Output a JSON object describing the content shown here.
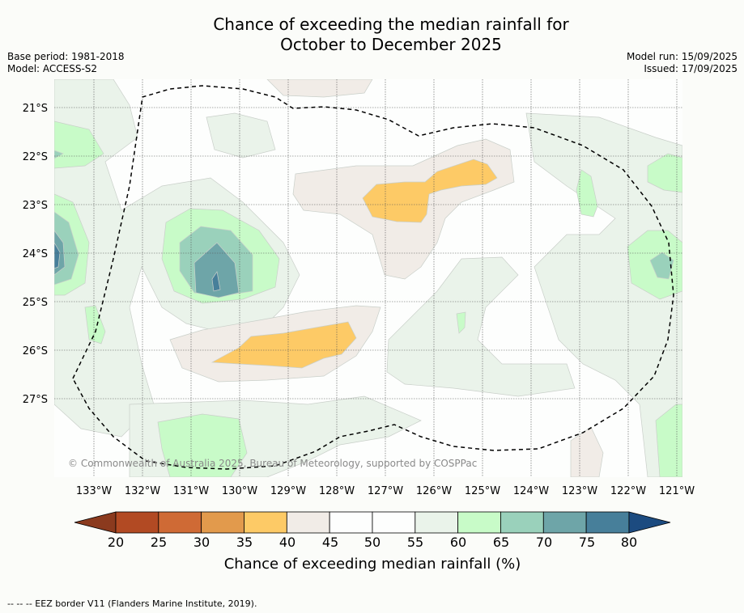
{
  "title": {
    "line1": "Chance of exceeding the median rainfall for",
    "line2": "October to December 2025"
  },
  "meta": {
    "base_period": "Base period: 1981-2018",
    "model": "Model: ACCESS-S2",
    "model_run": "Model run: 15/09/2025",
    "issued": "Issued: 17/09/2025"
  },
  "copyright": "© Commonwealth of Australia 2025, Bureau of Meteorology, supported by COSPPac",
  "latitudes": [
    "21°S",
    "22°S",
    "23°S",
    "24°S",
    "25°S",
    "26°S",
    "27°S"
  ],
  "longitudes": [
    "133°W",
    "132°W",
    "131°W",
    "130°W",
    "129°W",
    "128°W",
    "127°W",
    "126°W",
    "125°W",
    "124°W",
    "123°W",
    "122°W",
    "121°W"
  ],
  "colorbar": {
    "ticks": [
      "20",
      "25",
      "30",
      "35",
      "40",
      "45",
      "50",
      "55",
      "60",
      "65",
      "70",
      "75",
      "80"
    ],
    "colors": [
      "#8b3a1e",
      "#b24a23",
      "#cf6a35",
      "#e29a4c",
      "#fdca66",
      "#f1ece7",
      "#fdfefd",
      "#fdfefd",
      "#eaf3ea",
      "#c8fbc8",
      "#9ad1bb",
      "#6ea5a8",
      "#477f9a",
      "#1c4b80"
    ],
    "label": "Chance of exceeding median rainfall (%)"
  },
  "footer": "-- -- -- EEZ border V11 (Flanders Marine Institute, 2019)."
}
